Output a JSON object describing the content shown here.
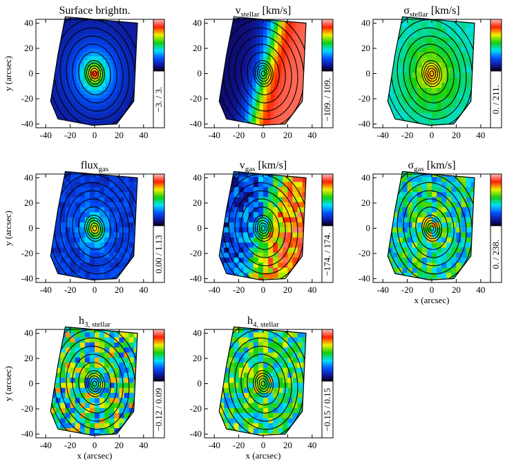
{
  "chart_data": [
    {
      "type": "map",
      "title": "Surface brightn.",
      "ylabel": "y (arcsec)",
      "xlim": [
        -48,
        48
      ],
      "ylim": [
        -43,
        43
      ],
      "xticks": [
        -40,
        -20,
        0,
        20,
        40
      ],
      "yticks": [
        -40,
        -20,
        0,
        20,
        40
      ],
      "cbar_lim": [
        -3,
        3
      ],
      "cbar_label": "−3.  /  3."
    },
    {
      "type": "map",
      "title": "v",
      "title_sub": "stellar",
      "title_suffix": " [km/s]",
      "xlim": [
        -48,
        48
      ],
      "ylim": [
        -43,
        43
      ],
      "xticks": [
        -40,
        -20,
        0,
        20,
        40
      ],
      "yticks": [
        -40,
        -20,
        0,
        20,
        40
      ],
      "cbar_lim": [
        -109,
        109
      ],
      "cbar_label": "−109.  /  109."
    },
    {
      "type": "map",
      "title": "σ",
      "title_sub": "stellar",
      "title_suffix": " [km/s]",
      "xlim": [
        -48,
        48
      ],
      "ylim": [
        -43,
        43
      ],
      "xticks": [
        -40,
        -20,
        0,
        20,
        40
      ],
      "yticks": [
        -40,
        -20,
        0,
        20,
        40
      ],
      "cbar_lim": [
        0,
        211
      ],
      "cbar_label": "0.  /  211."
    },
    {
      "type": "map",
      "title": "flux",
      "title_sub": "gas",
      "ylabel": "y (arcsec)",
      "xlim": [
        -48,
        48
      ],
      "ylim": [
        -43,
        43
      ],
      "xticks": [
        -40,
        -20,
        0,
        20,
        40
      ],
      "yticks": [
        -40,
        -20,
        0,
        20,
        40
      ],
      "cbar_lim": [
        0,
        1.13
      ],
      "cbar_label": "0.00  /  1.13"
    },
    {
      "type": "map",
      "title": "v",
      "title_sub": "gas",
      "title_suffix": " [km/s]",
      "xlim": [
        -48,
        48
      ],
      "ylim": [
        -43,
        43
      ],
      "xticks": [
        -40,
        -20,
        0,
        20,
        40
      ],
      "yticks": [
        -40,
        -20,
        0,
        20,
        40
      ],
      "cbar_lim": [
        -174,
        174
      ],
      "cbar_label": "−174.  /  174."
    },
    {
      "type": "map",
      "title": "σ",
      "title_sub": "gas",
      "title_suffix": " [km/s]",
      "xlabel": "x (arcsec)",
      "xlim": [
        -48,
        48
      ],
      "ylim": [
        -43,
        43
      ],
      "xticks": [
        -40,
        -20,
        0,
        20,
        40
      ],
      "yticks": [
        -40,
        -20,
        0,
        20,
        40
      ],
      "cbar_lim": [
        0,
        238
      ],
      "cbar_label": "0.  /  238."
    },
    {
      "type": "map",
      "title": "h",
      "title_sub": "3, stellar",
      "ylabel": "y (arcsec)",
      "xlabel": "x (arcsec)",
      "xlim": [
        -48,
        48
      ],
      "ylim": [
        -43,
        43
      ],
      "xticks": [
        -40,
        -20,
        0,
        20,
        40
      ],
      "yticks": [
        -40,
        -20,
        0,
        20,
        40
      ],
      "cbar_lim": [
        -0.12,
        0.09
      ],
      "cbar_label": "−0.12  /  0.09"
    },
    {
      "type": "map",
      "title": "h",
      "title_sub": "4, stellar",
      "xlabel": "x (arcsec)",
      "xlim": [
        -48,
        48
      ],
      "ylim": [
        -43,
        43
      ],
      "xticks": [
        -40,
        -20,
        0,
        20,
        40
      ],
      "yticks": [
        -40,
        -20,
        0,
        20,
        40
      ],
      "cbar_lim": [
        -0.15,
        0.15
      ],
      "cbar_label": "−0.15  /  0.15"
    }
  ]
}
